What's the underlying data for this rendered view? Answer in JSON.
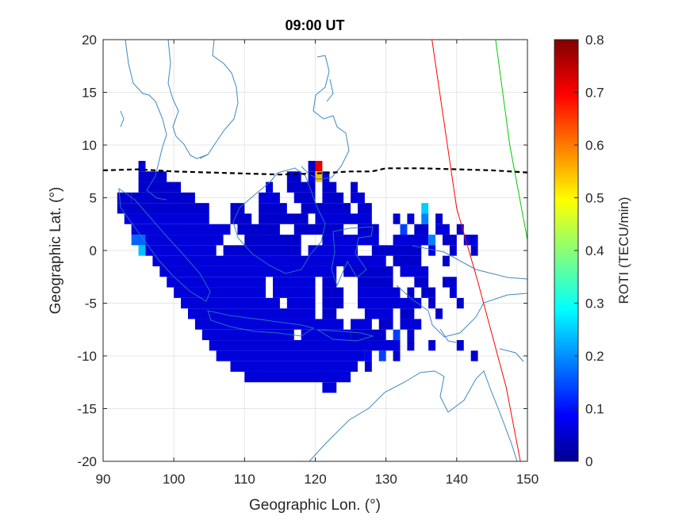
{
  "chart_data": {
    "type": "heatmap",
    "title": "09:00 UT",
    "xlabel": "Geographic Lon. (°)",
    "ylabel": "Geographic Lat. (°)",
    "xlim": [
      90,
      150
    ],
    "ylim": [
      -20,
      20
    ],
    "x_ticks": [
      90,
      100,
      110,
      120,
      130,
      140,
      150
    ],
    "y_ticks": [
      -20,
      -15,
      -10,
      -5,
      0,
      5,
      10,
      15,
      20
    ],
    "grid": true,
    "colorbar": {
      "label": "ROTI (TECU/min)",
      "range": [
        0,
        0.8
      ],
      "ticks": [
        0,
        0.1,
        0.2,
        0.3,
        0.4,
        0.5,
        0.6,
        0.7,
        0.8
      ],
      "colormap": "jet"
    },
    "roti_cells_cell_size_deg": 1,
    "roti_rows": [
      {
        "lat": 8,
        "segments": [
          [
            95,
            96,
            0.07
          ],
          [
            119,
            120,
            0.06
          ],
          [
            120,
            121,
            0.72
          ]
        ]
      },
      {
        "lat": 7,
        "segments": [
          [
            95,
            99,
            0.06
          ],
          [
            116,
            118,
            0.06
          ],
          [
            119,
            120,
            0.08
          ],
          [
            120,
            121,
            0.55
          ],
          [
            121,
            122,
            0.07
          ]
        ]
      },
      {
        "lat": 6,
        "segments": [
          [
            95,
            101,
            0.06
          ],
          [
            113,
            114,
            0.07
          ],
          [
            116,
            120,
            0.06
          ],
          [
            121,
            123,
            0.06
          ],
          [
            125,
            126,
            0.06
          ]
        ]
      },
      {
        "lat": 5,
        "segments": [
          [
            92,
            94,
            0.06
          ],
          [
            94,
            103,
            0.06
          ],
          [
            112,
            115,
            0.07
          ],
          [
            117,
            120,
            0.06
          ],
          [
            121,
            124,
            0.06
          ],
          [
            125,
            127,
            0.07
          ]
        ]
      },
      {
        "lat": 4,
        "segments": [
          [
            92,
            105,
            0.06
          ],
          [
            108,
            110,
            0.06
          ],
          [
            112,
            116,
            0.06
          ],
          [
            118,
            125,
            0.06
          ],
          [
            126,
            128,
            0.06
          ],
          [
            135,
            136,
            0.26
          ]
        ]
      },
      {
        "lat": 3,
        "segments": [
          [
            93,
            105,
            0.07
          ],
          [
            108,
            111,
            0.06
          ],
          [
            112,
            119,
            0.06
          ],
          [
            120,
            128,
            0.07
          ],
          [
            131,
            132,
            0.06
          ],
          [
            133,
            134,
            0.07
          ],
          [
            135,
            136,
            0.2
          ],
          [
            137,
            138,
            0.06
          ]
        ]
      },
      {
        "lat": 2,
        "segments": [
          [
            94,
            108,
            0.07
          ],
          [
            109,
            115,
            0.06
          ],
          [
            117,
            124,
            0.06
          ],
          [
            126,
            129,
            0.06
          ],
          [
            132,
            133,
            0.15
          ],
          [
            134,
            136,
            0.06
          ],
          [
            137,
            139,
            0.07
          ],
          [
            140,
            141,
            0.06
          ]
        ]
      },
      {
        "lat": 1,
        "segments": [
          [
            94,
            96,
            0.18
          ],
          [
            96,
            107,
            0.07
          ],
          [
            110,
            118,
            0.06
          ],
          [
            121,
            129,
            0.07
          ],
          [
            131,
            136,
            0.07
          ],
          [
            136,
            137,
            0.2
          ],
          [
            138,
            140,
            0.06
          ],
          [
            141,
            143,
            0.07
          ]
        ]
      },
      {
        "lat": 0,
        "segments": [
          [
            95,
            96,
            0.25
          ],
          [
            96,
            106,
            0.07
          ],
          [
            107,
            118,
            0.06
          ],
          [
            119,
            126,
            0.07
          ],
          [
            128,
            135,
            0.06
          ],
          [
            136,
            137,
            0.08
          ],
          [
            139,
            140,
            0.06
          ],
          [
            142,
            143,
            0.06
          ]
        ]
      },
      {
        "lat": -1,
        "segments": [
          [
            97,
            130,
            0.07
          ],
          [
            131,
            135,
            0.06
          ],
          [
            138,
            139,
            0.06
          ]
        ]
      },
      {
        "lat": -2,
        "segments": [
          [
            98,
            123,
            0.07
          ],
          [
            124,
            131,
            0.06
          ],
          [
            132,
            136,
            0.07
          ]
        ]
      },
      {
        "lat": -3,
        "segments": [
          [
            99,
            113,
            0.07
          ],
          [
            114,
            120,
            0.07
          ],
          [
            121,
            123,
            0.06
          ],
          [
            126,
            131,
            0.06
          ],
          [
            134,
            136,
            0.06
          ],
          [
            138,
            140,
            0.06
          ]
        ]
      },
      {
        "lat": -4,
        "segments": [
          [
            100,
            113,
            0.07
          ],
          [
            114,
            120,
            0.07
          ],
          [
            121,
            124,
            0.06
          ],
          [
            126,
            132,
            0.07
          ],
          [
            133,
            134,
            0.06
          ],
          [
            135,
            137,
            0.06
          ],
          [
            139,
            140,
            0.07
          ]
        ]
      },
      {
        "lat": -5,
        "segments": [
          [
            101,
            115,
            0.07
          ],
          [
            116,
            120,
            0.07
          ],
          [
            121,
            124,
            0.06
          ],
          [
            126,
            135,
            0.07
          ],
          [
            136,
            137,
            0.06
          ],
          [
            140,
            141,
            0.06
          ]
        ]
      },
      {
        "lat": -6,
        "segments": [
          [
            102,
            120,
            0.07
          ],
          [
            121,
            123,
            0.06
          ],
          [
            127,
            131,
            0.07
          ],
          [
            132,
            134,
            0.06
          ],
          [
            137,
            138,
            0.06
          ]
        ]
      },
      {
        "lat": -7,
        "segments": [
          [
            103,
            124,
            0.07
          ],
          [
            125,
            128,
            0.07
          ],
          [
            129,
            131,
            0.06
          ],
          [
            132,
            135,
            0.07
          ]
        ]
      },
      {
        "lat": -8,
        "segments": [
          [
            104,
            117,
            0.07
          ],
          [
            118,
            125,
            0.07
          ],
          [
            125,
            130,
            0.06
          ],
          [
            131,
            132,
            0.15
          ],
          [
            133,
            134,
            0.07
          ]
        ]
      },
      {
        "lat": -9,
        "segments": [
          [
            105,
            132,
            0.07
          ],
          [
            133,
            134,
            0.06
          ],
          [
            136,
            137,
            0.07
          ],
          [
            140,
            141,
            0.06
          ]
        ]
      },
      {
        "lat": -10,
        "segments": [
          [
            106,
            127,
            0.07
          ],
          [
            127,
            128,
            0.09
          ],
          [
            129,
            130,
            0.15
          ],
          [
            131,
            132,
            0.06
          ],
          [
            142,
            143,
            0.06
          ]
        ]
      },
      {
        "lat": -11,
        "segments": [
          [
            108,
            126,
            0.07
          ],
          [
            127,
            128,
            0.06
          ]
        ]
      },
      {
        "lat": -12,
        "segments": [
          [
            110,
            125,
            0.07
          ]
        ]
      },
      {
        "lat": -13,
        "segments": [
          [
            121,
            123,
            0.07
          ]
        ]
      }
    ],
    "dashed_boundary_line": {
      "color": "#000000",
      "points": [
        [
          90,
          7.6
        ],
        [
          95,
          7.7
        ],
        [
          100,
          7.5
        ],
        [
          105,
          7.4
        ],
        [
          110,
          7.3
        ],
        [
          115,
          7.2
        ],
        [
          120,
          7.3
        ],
        [
          125,
          7.5
        ],
        [
          128,
          7.5
        ],
        [
          130,
          7.8
        ],
        [
          135,
          7.8
        ],
        [
          140,
          7.7
        ],
        [
          145,
          7.6
        ],
        [
          150,
          7.4
        ]
      ]
    },
    "red_line": {
      "color": "#ff0000",
      "points": [
        [
          136.5,
          20
        ],
        [
          140,
          4
        ],
        [
          143,
          -3
        ],
        [
          147,
          -13
        ],
        [
          149,
          -20
        ]
      ]
    },
    "green_line": {
      "color": "#00cc00",
      "points": [
        [
          145.5,
          20
        ],
        [
          147.5,
          10
        ],
        [
          150,
          1
        ]
      ]
    },
    "coastline_color": "#1f77b4"
  }
}
